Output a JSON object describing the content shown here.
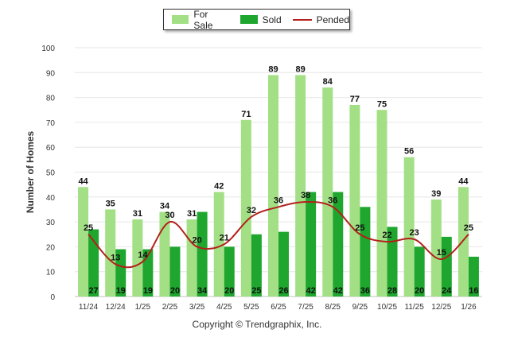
{
  "chart_data": {
    "type": "bar",
    "ylabel": "Number of Homes",
    "ylim": [
      0,
      100
    ],
    "yticks": [
      0,
      10,
      20,
      30,
      40,
      50,
      60,
      70,
      80,
      90,
      100
    ],
    "categories": [
      "11/24",
      "12/24",
      "1/25",
      "2/25",
      "3/25",
      "4/25",
      "5/25",
      "6/25",
      "7/25",
      "8/25",
      "9/25",
      "10/25",
      "11/25",
      "12/25",
      "1/26"
    ],
    "series": [
      {
        "name": "For Sale",
        "type": "bar",
        "color": "#a3e085",
        "values": [
          44,
          35,
          31,
          34,
          31,
          42,
          71,
          89,
          89,
          84,
          77,
          75,
          56,
          39,
          44
        ]
      },
      {
        "name": "Sold",
        "type": "bar",
        "color": "#1fa62e",
        "values": [
          27,
          19,
          19,
          20,
          34,
          20,
          25,
          26,
          42,
          42,
          36,
          28,
          20,
          24,
          16
        ]
      },
      {
        "name": "Pended",
        "type": "line",
        "color": "#b3201c",
        "values": [
          25,
          13,
          14,
          30,
          20,
          21,
          32,
          36,
          38,
          36,
          25,
          22,
          23,
          15,
          25
        ]
      }
    ],
    "legend": "top-center",
    "grid": true
  },
  "footer": "Copyright © Trendgraphix, Inc."
}
